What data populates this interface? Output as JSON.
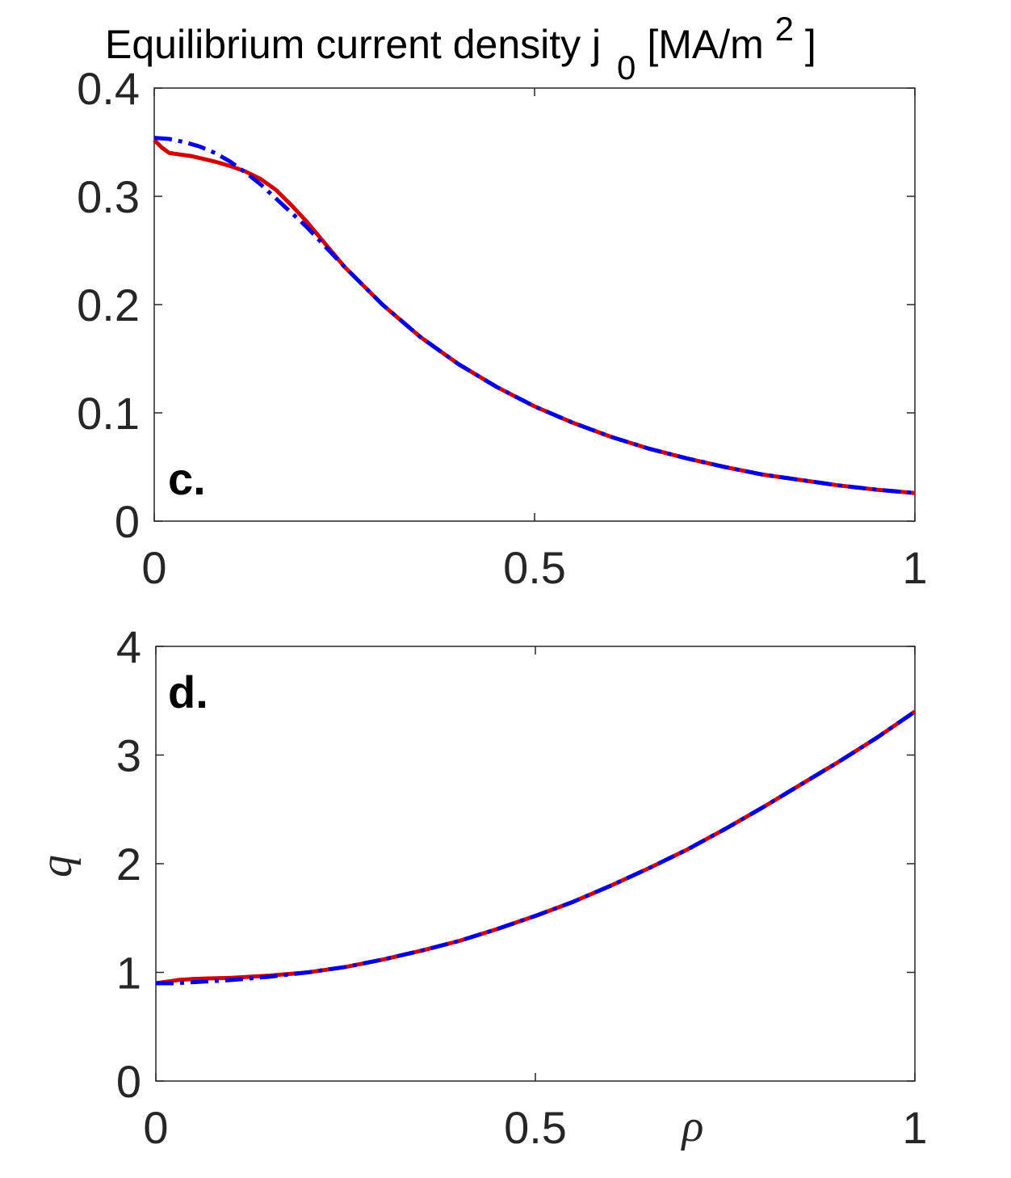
{
  "title": {
    "main": "Equilibrium current density j",
    "subscript": "0",
    "unit_prefix": " [MA/m",
    "unit_sup": "2",
    "unit_suffix": "]"
  },
  "colors": {
    "red": "#d40000",
    "blue": "#0000e6",
    "axis": "#262626"
  },
  "chart_data": [
    {
      "type": "line",
      "panel_label": "c.",
      "xlabel": "",
      "ylabel": "",
      "xlim": [
        0,
        1
      ],
      "ylim": [
        0,
        0.4
      ],
      "xticks": [
        0,
        0.5,
        1
      ],
      "xtick_labels": [
        "0",
        "0.5",
        "1"
      ],
      "yticks": [
        0,
        0.1,
        0.2,
        0.3,
        0.4
      ],
      "ytick_labels": [
        "0",
        "0.1",
        "0.2",
        "0.3",
        "0.4"
      ],
      "grid": false,
      "series": [
        {
          "style": "solid",
          "color": "red",
          "x": [
            0,
            0.01,
            0.02,
            0.05,
            0.08,
            0.1,
            0.12,
            0.14,
            0.16,
            0.18,
            0.2,
            0.25,
            0.3,
            0.35,
            0.4,
            0.45,
            0.5,
            0.55,
            0.6,
            0.65,
            0.7,
            0.75,
            0.8,
            0.85,
            0.9,
            0.95,
            1.0
          ],
          "y": [
            0.352,
            0.345,
            0.34,
            0.337,
            0.332,
            0.328,
            0.323,
            0.316,
            0.306,
            0.292,
            0.277,
            0.235,
            0.2,
            0.17,
            0.145,
            0.124,
            0.106,
            0.091,
            0.078,
            0.067,
            0.058,
            0.05,
            0.043,
            0.038,
            0.033,
            0.029,
            0.026
          ]
        },
        {
          "style": "dashdot",
          "color": "blue",
          "x": [
            0,
            0.02,
            0.04,
            0.06,
            0.08,
            0.1,
            0.12,
            0.14,
            0.16,
            0.18,
            0.2,
            0.25,
            0.3,
            0.35,
            0.4,
            0.45,
            0.5,
            0.55,
            0.6,
            0.65,
            0.7,
            0.75,
            0.8,
            0.85,
            0.9,
            0.95,
            1.0
          ],
          "y": [
            0.354,
            0.353,
            0.35,
            0.346,
            0.34,
            0.332,
            0.322,
            0.311,
            0.298,
            0.285,
            0.272,
            0.235,
            0.2,
            0.17,
            0.145,
            0.124,
            0.106,
            0.091,
            0.078,
            0.067,
            0.058,
            0.05,
            0.043,
            0.038,
            0.033,
            0.029,
            0.026
          ]
        }
      ]
    },
    {
      "type": "line",
      "panel_label": "d.",
      "xlabel": "ρ",
      "ylabel": "q",
      "xlim": [
        0,
        1
      ],
      "ylim": [
        0,
        4
      ],
      "xticks": [
        0,
        0.5,
        1
      ],
      "xtick_labels": [
        "0",
        "0.5",
        "1"
      ],
      "yticks": [
        0,
        1,
        2,
        3,
        4
      ],
      "ytick_labels": [
        "0",
        "1",
        "2",
        "3",
        "4"
      ],
      "grid": false,
      "series": [
        {
          "style": "solid",
          "color": "red",
          "x": [
            0,
            0.01,
            0.02,
            0.03,
            0.05,
            0.1,
            0.15,
            0.2,
            0.25,
            0.3,
            0.35,
            0.4,
            0.45,
            0.5,
            0.55,
            0.6,
            0.65,
            0.7,
            0.75,
            0.8,
            0.85,
            0.9,
            0.95,
            1.0
          ],
          "y": [
            0.9,
            0.91,
            0.92,
            0.93,
            0.94,
            0.95,
            0.97,
            1.0,
            1.05,
            1.12,
            1.2,
            1.29,
            1.4,
            1.52,
            1.65,
            1.8,
            1.96,
            2.13,
            2.32,
            2.52,
            2.73,
            2.94,
            3.16,
            3.4
          ]
        },
        {
          "style": "dashdot",
          "color": "blue",
          "x": [
            0,
            0.02,
            0.05,
            0.1,
            0.15,
            0.2,
            0.25,
            0.3,
            0.35,
            0.4,
            0.45,
            0.5,
            0.55,
            0.6,
            0.65,
            0.7,
            0.75,
            0.8,
            0.85,
            0.9,
            0.95,
            1.0
          ],
          "y": [
            0.9,
            0.9,
            0.91,
            0.93,
            0.96,
            1.0,
            1.05,
            1.12,
            1.2,
            1.29,
            1.4,
            1.52,
            1.65,
            1.8,
            1.96,
            2.13,
            2.32,
            2.52,
            2.73,
            2.94,
            3.16,
            3.4
          ]
        }
      ]
    }
  ]
}
